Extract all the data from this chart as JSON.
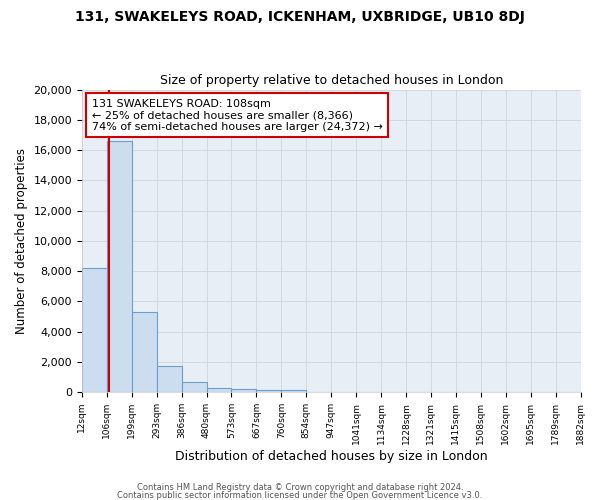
{
  "title": "131, SWAKELEYS ROAD, ICKENHAM, UXBRIDGE, UB10 8DJ",
  "subtitle": "Size of property relative to detached houses in London",
  "xlabel": "Distribution of detached houses by size in London",
  "ylabel": "Number of detached properties",
  "bar_values": [
    8200,
    16600,
    5300,
    1750,
    700,
    280,
    200,
    150,
    130,
    0,
    0,
    0,
    0,
    0,
    0,
    0,
    0,
    0,
    0,
    0
  ],
  "bin_labels": [
    "12sqm",
    "106sqm",
    "199sqm",
    "293sqm",
    "386sqm",
    "480sqm",
    "573sqm",
    "667sqm",
    "760sqm",
    "854sqm",
    "947sqm",
    "1041sqm",
    "1134sqm",
    "1228sqm",
    "1321sqm",
    "1415sqm",
    "1508sqm",
    "1602sqm",
    "1695sqm",
    "1789sqm",
    "1882sqm"
  ],
  "bar_color": "#ccddf0",
  "bar_edge_color": "#6a9fcb",
  "vline_color": "#cc0000",
  "annotation_title": "131 SWAKELEYS ROAD: 108sqm",
  "annotation_line1": "← 25% of detached houses are smaller (8,366)",
  "annotation_line2": "74% of semi-detached houses are larger (24,372) →",
  "annotation_box_facecolor": "#ffffff",
  "annotation_box_edgecolor": "#cc0000",
  "ylim": [
    0,
    20000
  ],
  "yticks": [
    0,
    2000,
    4000,
    6000,
    8000,
    10000,
    12000,
    14000,
    16000,
    18000,
    20000
  ],
  "bg_color": "#ffffff",
  "plot_bg_color": "#e8eef5",
  "grid_color": "#d0d8e0",
  "footer1": "Contains HM Land Registry data © Crown copyright and database right 2024.",
  "footer2": "Contains public sector information licensed under the Open Government Licence v3.0."
}
